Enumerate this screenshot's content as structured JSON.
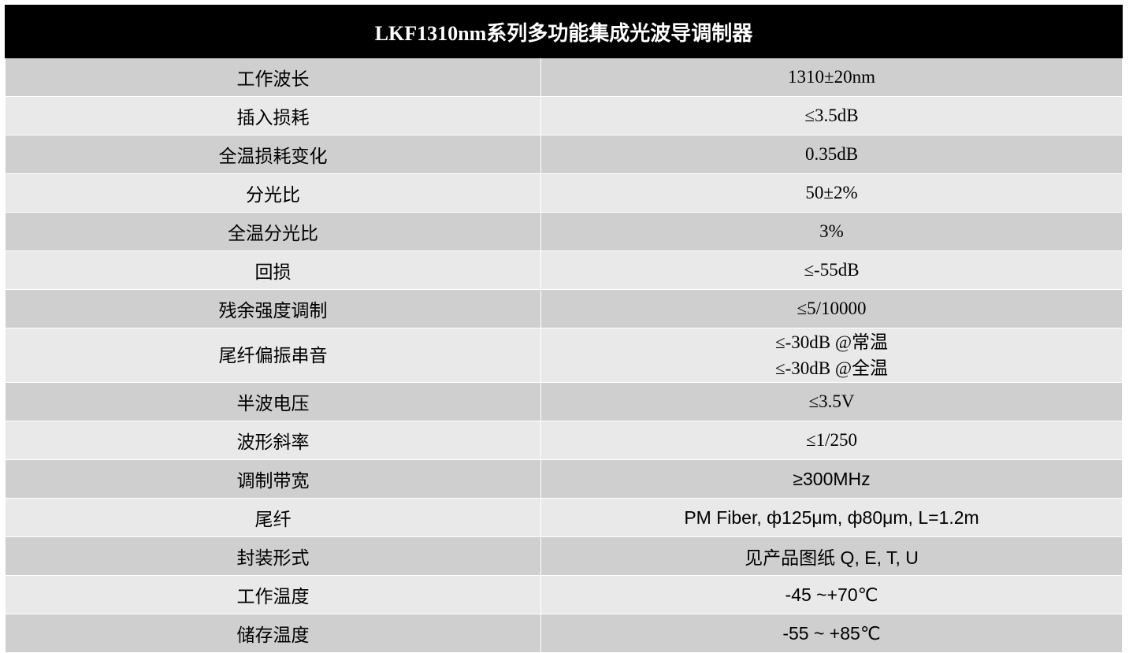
{
  "title": "LKF1310nm系列多功能集成光波导调制器",
  "rows": [
    {
      "param": "工作波长",
      "value": [
        "1310±20nm"
      ]
    },
    {
      "param": "插入损耗",
      "value": [
        "≤3.5dB"
      ]
    },
    {
      "param": "全温损耗变化",
      "value": [
        "0.35dB"
      ]
    },
    {
      "param": "分光比",
      "value": [
        "50±2%"
      ]
    },
    {
      "param": "全温分光比",
      "value": [
        "3%"
      ]
    },
    {
      "param": "回损",
      "value": [
        "≤-55dB"
      ]
    },
    {
      "param": "残余强度调制",
      "value": [
        "≤5/10000"
      ]
    },
    {
      "param": "尾纤偏振串音",
      "value": [
        "≤-30dB @常温",
        "≤-30dB @全温"
      ]
    },
    {
      "param": "半波电压",
      "value": [
        "≤3.5V"
      ]
    },
    {
      "param": "波形斜率",
      "value": [
        "≤1/250"
      ]
    },
    {
      "param": "调制带宽",
      "value": [
        "≥300MHz"
      ]
    },
    {
      "param": "尾纤",
      "value": [
        "PM Fiber, ф125μm, ф80μm, L=1.2m"
      ]
    },
    {
      "param": "封装形式",
      "value": [
        "见产品图纸 Q, E, T, U"
      ]
    },
    {
      "param": "工作温度",
      "value": [
        "-45 ~+70℃"
      ]
    },
    {
      "param": "储存温度",
      "value": [
        "-55 ~ +85℃"
      ]
    }
  ]
}
